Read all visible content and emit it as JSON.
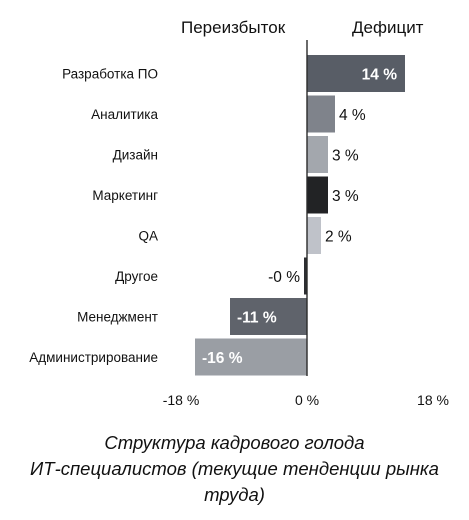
{
  "header": {
    "left_label": "Переизбыток",
    "right_label": "Дефицит"
  },
  "caption": {
    "line1": "Структура кадрового голода",
    "line2": "ИТ-специалистов (текущие тенденции рынка",
    "line3": "труда)"
  },
  "chart_data": {
    "type": "bar",
    "orientation": "horizontal",
    "categories": [
      "Разработка ПО",
      "Аналитика",
      "Дизайн",
      "Маркетинг",
      "QA",
      "Другое",
      "Менеджмент",
      "Администрирование"
    ],
    "values": [
      14,
      4,
      3,
      3,
      2,
      -0.3,
      -11,
      -16
    ],
    "value_labels": [
      "14 %",
      "4 %",
      "3 %",
      "3 %",
      "2 %",
      "-0 %",
      "-11 %",
      "-16 %"
    ],
    "bar_colors": [
      "#585d66",
      "#7f838b",
      "#a3a7ad",
      "#222325",
      "#bfc2c9",
      "#2d2e32",
      "#5f636b",
      "#9a9ea4"
    ],
    "xlim": [
      -18,
      18
    ],
    "xticks": [
      -18,
      0,
      18
    ],
    "xtick_labels": [
      "-18 %",
      "0 %",
      "18 %"
    ],
    "grid": false,
    "zero_line": true
  }
}
